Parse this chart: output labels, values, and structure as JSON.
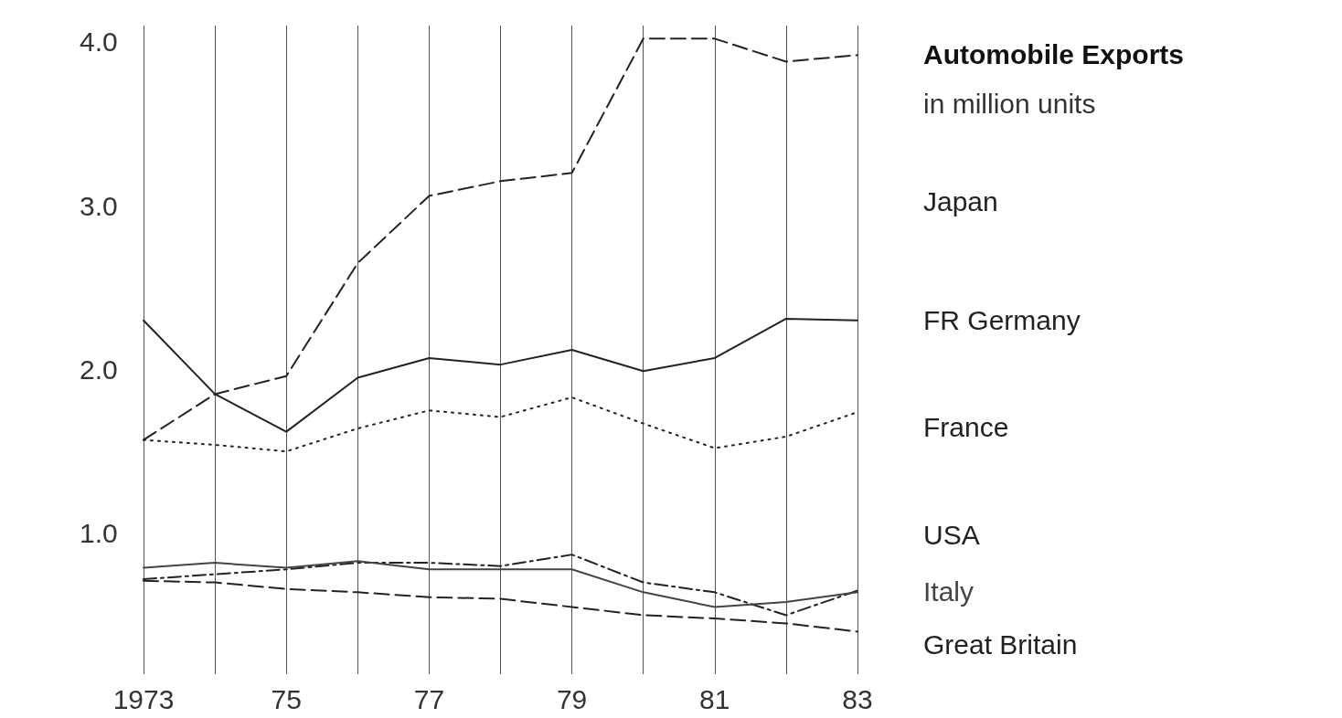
{
  "chart_data": {
    "type": "line",
    "title": "Automobile Exports",
    "subtitle": "in million units",
    "x": [
      1973,
      1974,
      1975,
      1976,
      1977,
      1978,
      1979,
      1980,
      1981,
      1982,
      1983
    ],
    "series": [
      {
        "name": "Japan",
        "color": "#222222",
        "line_style": "dashed",
        "values": [
          1.57,
          1.85,
          1.96,
          2.65,
          3.06,
          3.15,
          3.2,
          4.02,
          4.02,
          3.88,
          3.92
        ]
      },
      {
        "name": "FR Germany",
        "color": "#222222",
        "line_style": "solid",
        "values": [
          2.3,
          1.85,
          1.62,
          1.95,
          2.07,
          2.03,
          2.12,
          1.99,
          2.07,
          2.31,
          2.3
        ]
      },
      {
        "name": "France",
        "color": "#222222",
        "line_style": "dotted",
        "values": [
          1.57,
          1.54,
          1.5,
          1.64,
          1.75,
          1.71,
          1.83,
          1.67,
          1.52,
          1.59,
          1.74
        ]
      },
      {
        "name": "USA",
        "color": "#222222",
        "line_style": "dashdot",
        "values": [
          0.72,
          0.75,
          0.78,
          0.82,
          0.82,
          0.8,
          0.87,
          0.7,
          0.64,
          0.5,
          0.65
        ]
      },
      {
        "name": "Italy",
        "color": "#444444",
        "line_style": "solid",
        "values": [
          0.79,
          0.82,
          0.79,
          0.83,
          0.78,
          0.78,
          0.78,
          0.64,
          0.55,
          0.58,
          0.64
        ]
      },
      {
        "name": "Great Britain",
        "color": "#222222",
        "line_style": "dashed",
        "values": [
          0.71,
          0.7,
          0.66,
          0.64,
          0.61,
          0.6,
          0.55,
          0.5,
          0.48,
          0.45,
          0.4
        ]
      }
    ],
    "xlim": [
      1973,
      1983
    ],
    "xticks": [
      {
        "value": 1973,
        "label": "1973"
      },
      {
        "value": 1974,
        "label": null
      },
      {
        "value": 1975,
        "label": "75"
      },
      {
        "value": 1976,
        "label": null
      },
      {
        "value": 1977,
        "label": "77"
      },
      {
        "value": 1978,
        "label": null
      },
      {
        "value": 1979,
        "label": "79"
      },
      {
        "value": 1980,
        "label": null
      },
      {
        "value": 1981,
        "label": "81"
      },
      {
        "value": 1982,
        "label": null
      },
      {
        "value": 1983,
        "label": "83"
      }
    ],
    "ylim": [
      0.14,
      4.1
    ],
    "yticks": [
      {
        "value": 1,
        "label": "1.0"
      },
      {
        "value": 2,
        "label": "2.0"
      },
      {
        "value": 3,
        "label": "3.0"
      },
      {
        "value": 4,
        "label": "4.0"
      }
    ],
    "grid": "x",
    "legend": "right",
    "marker": "none"
  }
}
